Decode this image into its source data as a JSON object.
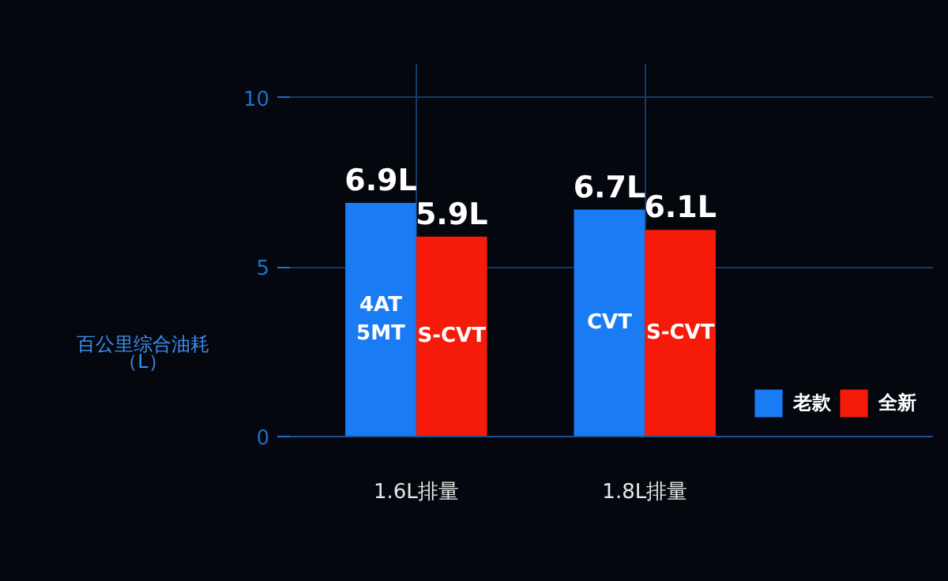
{
  "chart_data": {
    "type": "bar",
    "ylabel": "百公里综合油耗（L）",
    "categories": [
      "1.6L排量",
      "1.8L排量"
    ],
    "series": [
      {
        "name": "老款",
        "color": "#1a7cf5",
        "values": [
          6.9,
          6.7
        ],
        "value_labels": [
          "6.9L",
          "6.7L"
        ]
      },
      {
        "name": "全新",
        "color": "#f51a0a",
        "values": [
          5.9,
          6.1
        ],
        "value_labels": [
          "5.9L",
          "6.1L"
        ]
      }
    ],
    "annotations": [
      "4AT\n5MT",
      "S-CVT",
      "CVT",
      "S-CVT"
    ],
    "ylim": [
      0,
      11
    ],
    "yticks": [
      0,
      5,
      10
    ],
    "grid": true,
    "legend": "bottom right"
  }
}
